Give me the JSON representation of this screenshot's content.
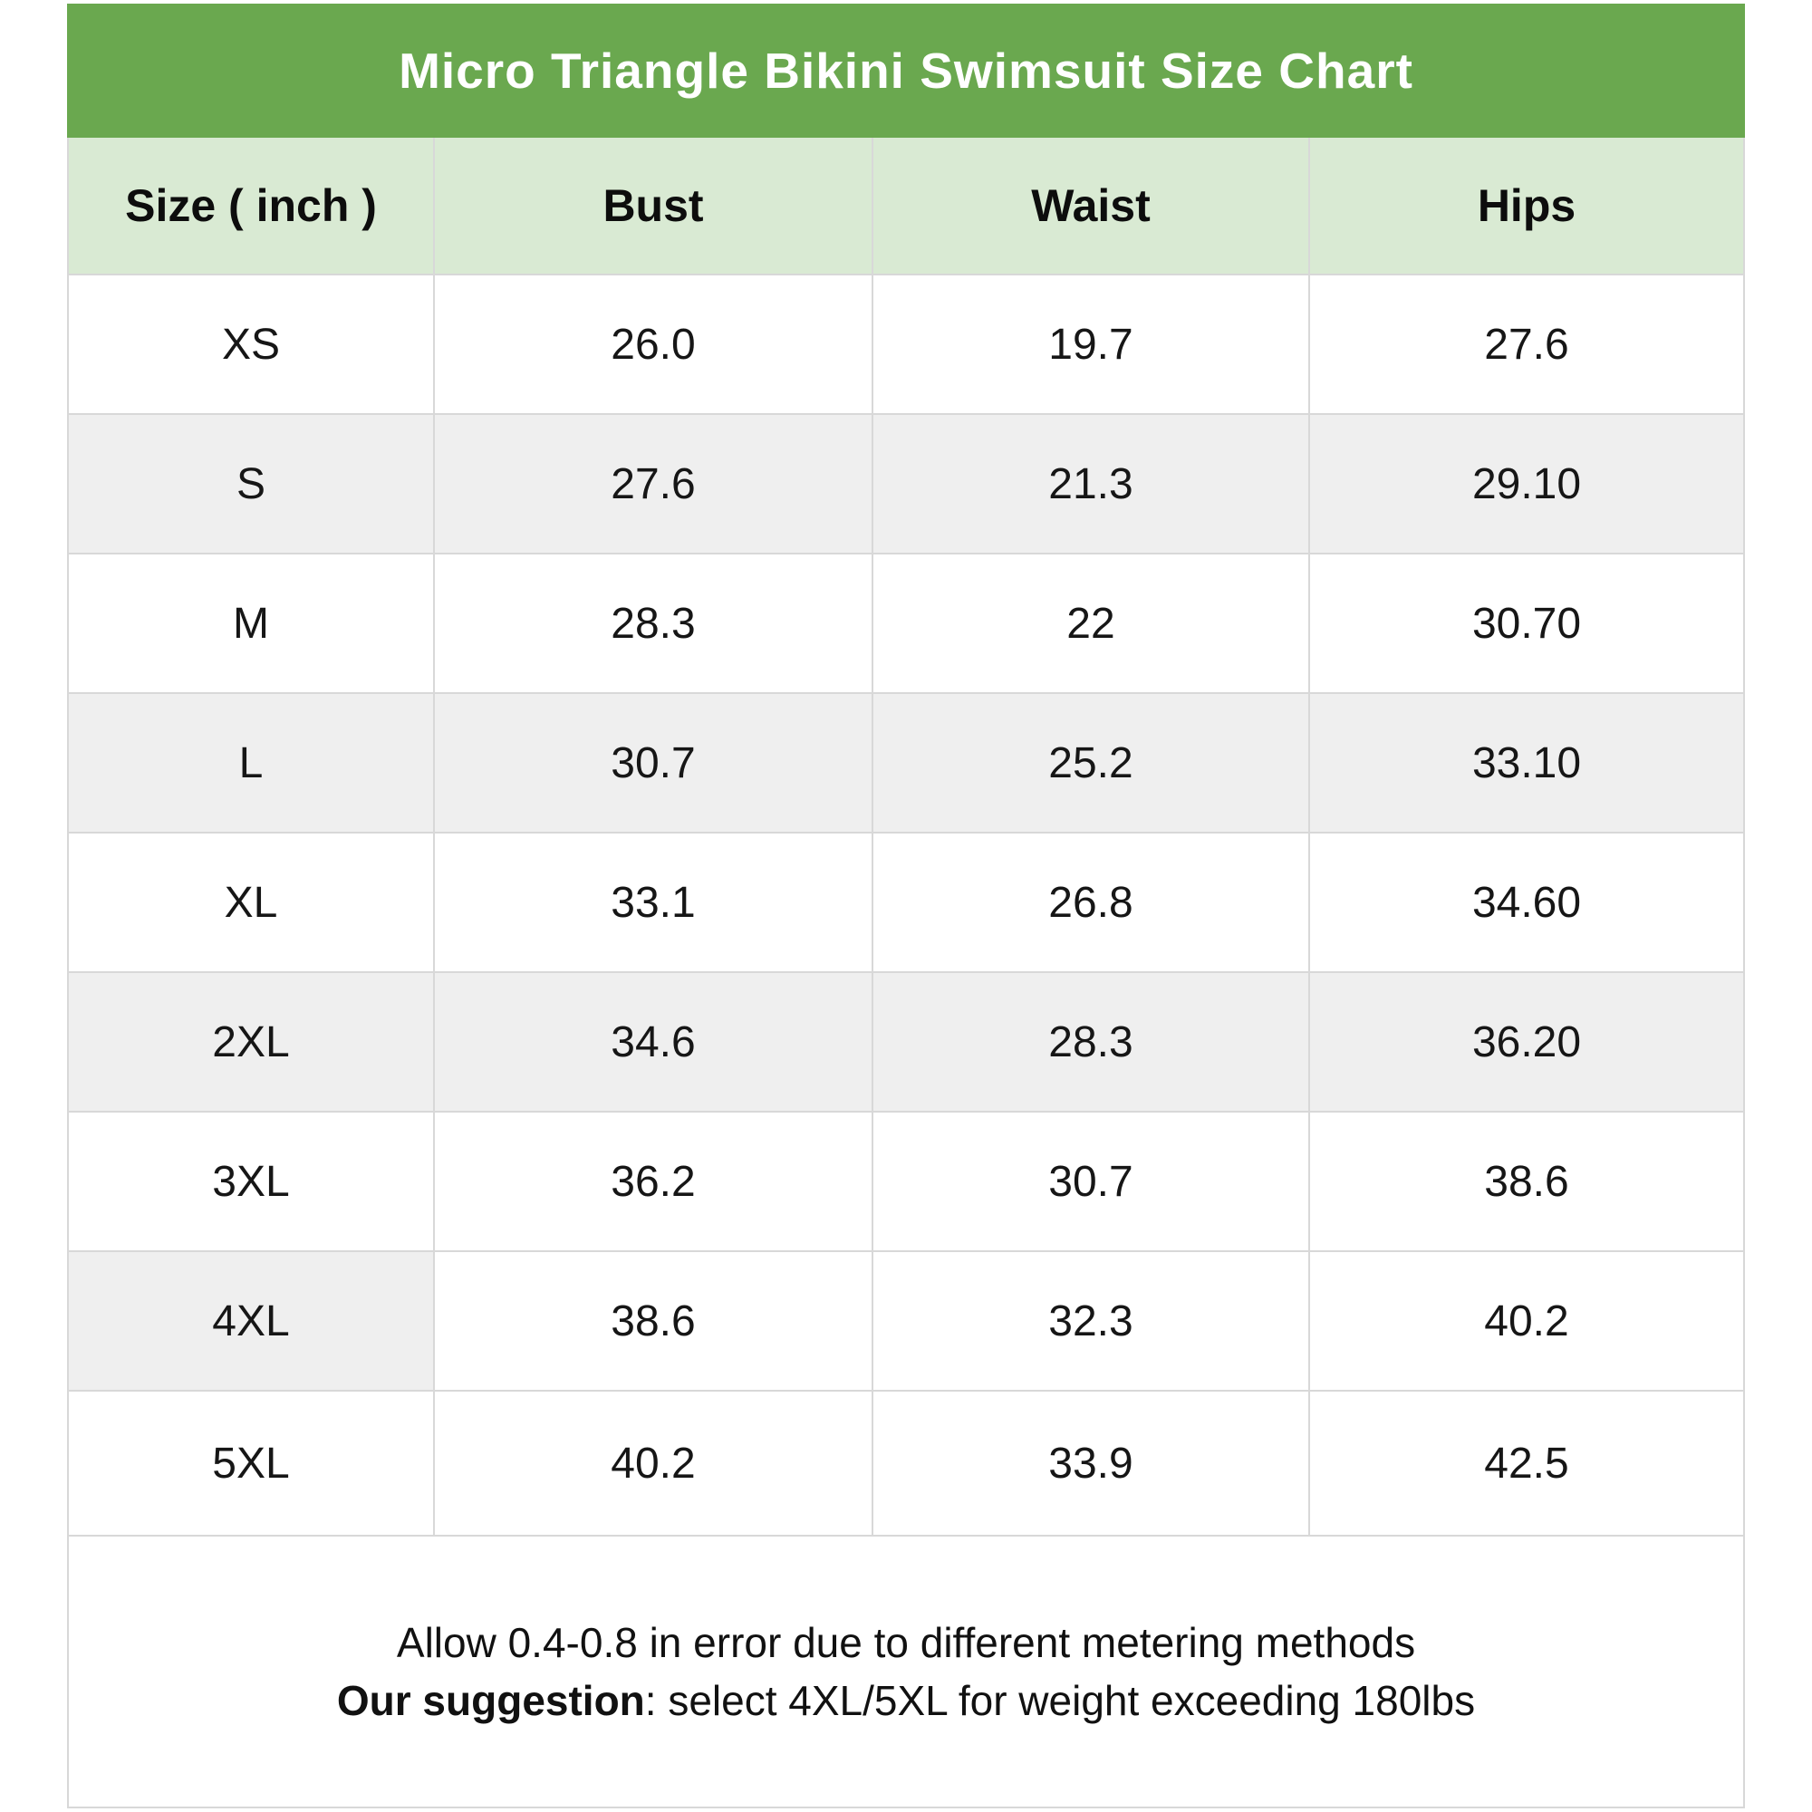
{
  "chart_data": {
    "type": "table",
    "title": "Micro Triangle Bikini Swimsuit Size Chart",
    "columns": [
      "Size ( inch )",
      "Bust",
      "Waist",
      "Hips"
    ],
    "rows": [
      [
        "XS",
        "26.0",
        "19.7",
        "27.6"
      ],
      [
        "S",
        "27.6",
        "21.3",
        "29.10"
      ],
      [
        "M",
        "28.3",
        "22",
        "30.70"
      ],
      [
        "L",
        "30.7",
        "25.2",
        "33.10"
      ],
      [
        "XL",
        "33.1",
        "26.8",
        "34.60"
      ],
      [
        "2XL",
        "34.6",
        "28.3",
        "36.20"
      ],
      [
        "3XL",
        "36.2",
        "30.7",
        "38.6"
      ],
      [
        "4XL",
        "38.6",
        "32.3",
        "40.2"
      ],
      [
        "5XL",
        "40.2",
        "33.9",
        "42.5"
      ]
    ],
    "legend_position": "none",
    "grid": true
  },
  "footer": {
    "line1": "Allow 0.4-0.8 in error due to different metering methods",
    "line2_bold": "Our suggestion",
    "line2_rest": ": select 4XL/5XL for weight exceeding 180lbs"
  },
  "colors": {
    "title_bar_green": "#6aa84f",
    "header_light_green": "#d9ead3",
    "stripe_gray": "#efefef",
    "border_gray": "#d8d8d8",
    "title_text": "#ffffff",
    "body_text": "#161616"
  }
}
